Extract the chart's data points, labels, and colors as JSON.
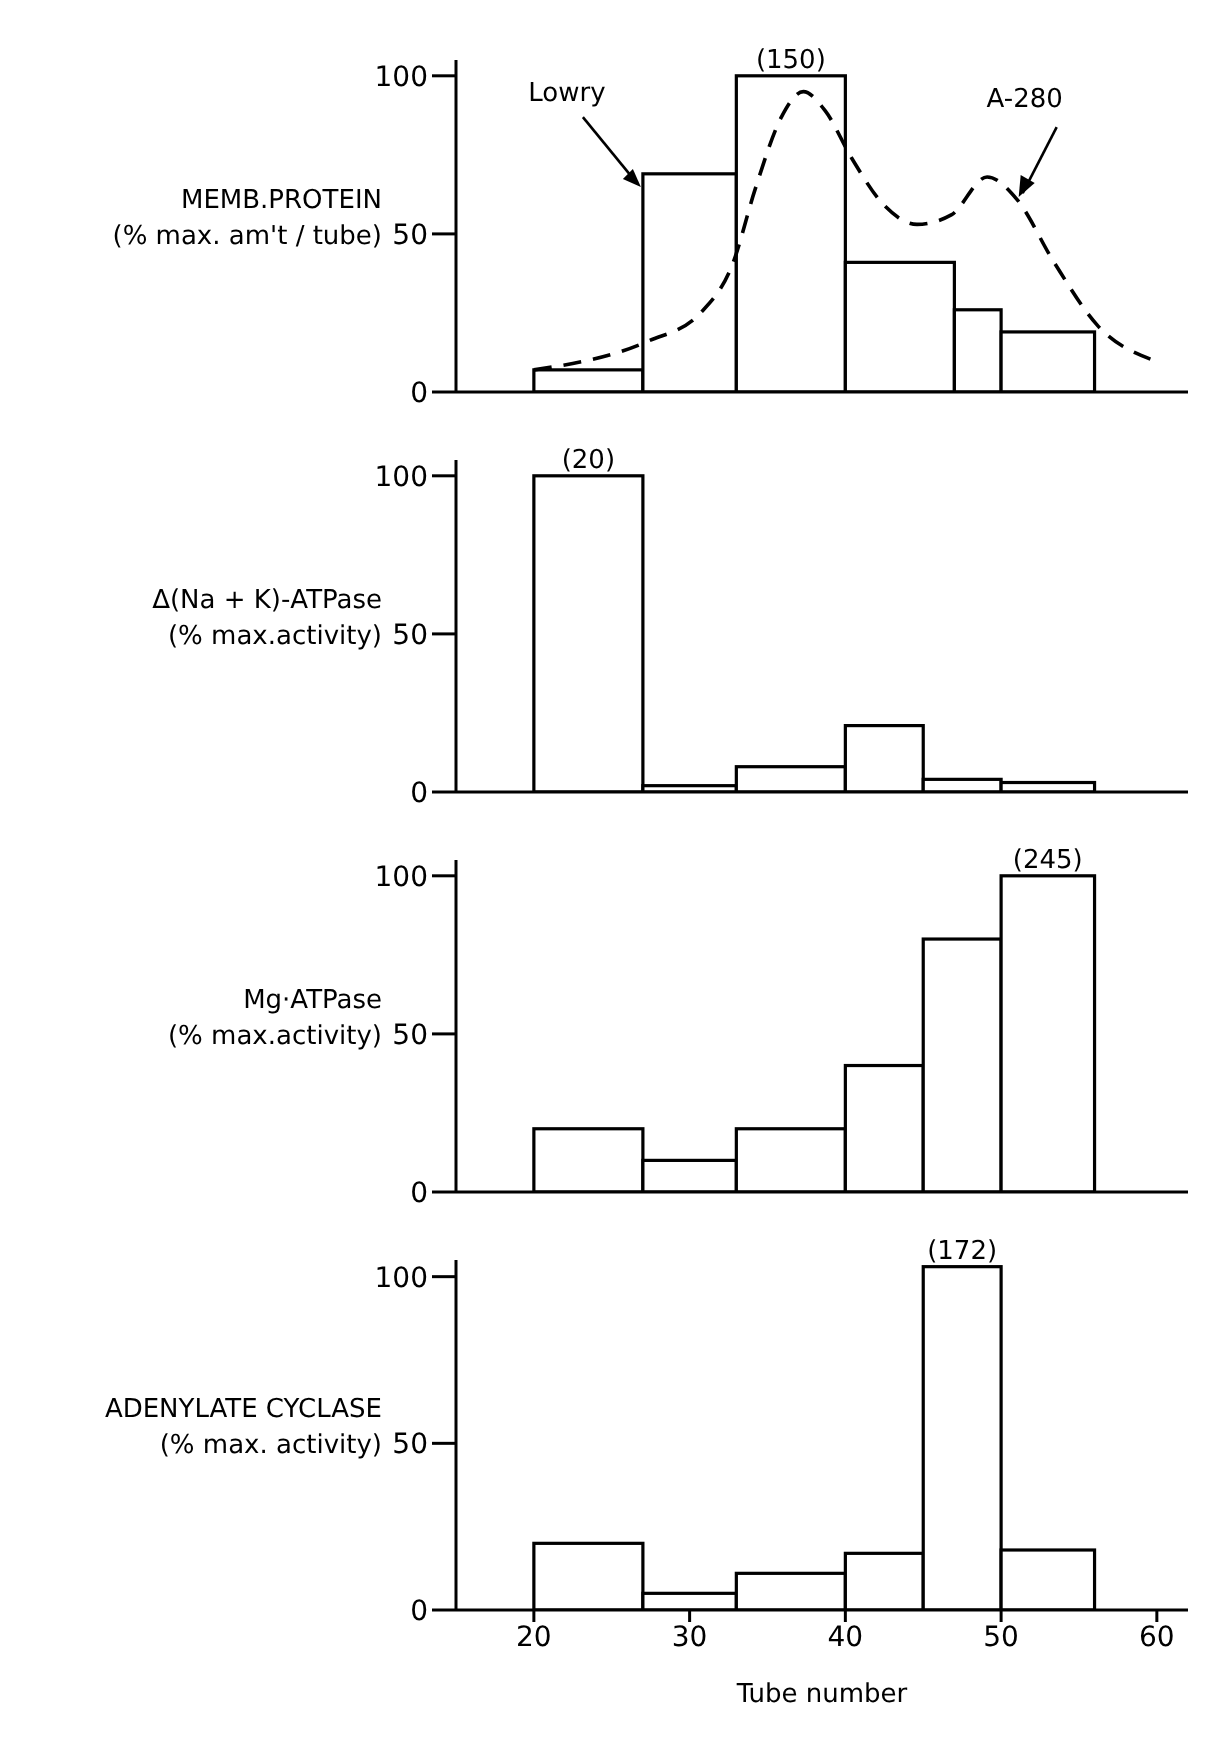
{
  "chart_data": [
    {
      "type": "histogram",
      "ylabel": "MEMB.PROTEIN\n(% max. am't / tube)",
      "bins": [
        20,
        27,
        33,
        40,
        47,
        50,
        56
      ],
      "xlim": [
        15,
        62
      ],
      "xticks": [
        20,
        30,
        40,
        50,
        60
      ],
      "ylim": [
        0,
        105
      ],
      "yticks": [
        0,
        50,
        100
      ],
      "tick_labels": "y",
      "annotations": [
        {
          "text": "(150)",
          "x": 36.5,
          "y": 100
        }
      ],
      "series": [
        {
          "name": "Lowry",
          "color": "#ffffff",
          "values": [
            7,
            69,
            100,
            41,
            26,
            19
          ]
        },
        {
          "type": "line",
          "name": "A-280",
          "color": "#000000",
          "line_style": "dashed",
          "x": [
            20,
            27.3,
            30.7,
            32.8,
            34.2,
            35.9,
            37.3,
            38.7,
            40.4,
            42.5,
            44.6,
            46.8,
            49.1,
            51,
            53.4,
            56.2,
            59.8
          ],
          "values": [
            7,
            16,
            25,
            41,
            64,
            87,
            95,
            89,
            74,
            59,
            53,
            56,
            68,
            61,
            41,
            21,
            10
          ]
        }
      ]
    },
    {
      "type": "histogram",
      "ylabel": "Δ(Na + K)-ATPase\n(% max.activity)",
      "bins": [
        20,
        27,
        33,
        40,
        45,
        50,
        56
      ],
      "xlim": [
        15,
        62
      ],
      "xticks": [
        20,
        30,
        40,
        50,
        60
      ],
      "ylim": [
        0,
        105
      ],
      "yticks": [
        0,
        50,
        100
      ],
      "tick_labels": "y",
      "annotations": [
        {
          "text": "(20)",
          "x": 23.5,
          "y": 100
        }
      ],
      "series": [
        {
          "color": "#ffffff",
          "values": [
            100,
            2,
            8,
            21,
            4,
            3
          ]
        }
      ]
    },
    {
      "type": "histogram",
      "ylabel": "Mg·ATPase\n(% max.activity)",
      "bins": [
        20,
        27,
        33,
        40,
        45,
        50,
        56
      ],
      "xlim": [
        15,
        62
      ],
      "xticks": [
        20,
        30,
        40,
        50,
        60
      ],
      "ylim": [
        0,
        105
      ],
      "yticks": [
        0,
        50,
        100
      ],
      "tick_labels": "y",
      "annotations": [
        {
          "text": "(245)",
          "x": 53,
          "y": 100
        }
      ],
      "series": [
        {
          "color": "#ffffff",
          "values": [
            20,
            10,
            20,
            40,
            80,
            100
          ]
        }
      ]
    },
    {
      "type": "histogram",
      "xlabel": "Tube number",
      "ylabel": "ADENYLATE CYCLASE\n(% max. activity)",
      "bins": [
        20,
        27,
        33,
        40,
        45,
        50,
        56
      ],
      "xlim": [
        15,
        62
      ],
      "xticks": [
        20,
        30,
        40,
        50,
        60
      ],
      "ylim": [
        0,
        105
      ],
      "yticks": [
        0,
        50,
        100
      ],
      "annotations": [
        {
          "text": "(172)",
          "x": 47.5,
          "y": 103
        }
      ],
      "series": [
        {
          "color": "#ffffff",
          "values": [
            20,
            5,
            11,
            17,
            103,
            18
          ]
        }
      ]
    }
  ]
}
